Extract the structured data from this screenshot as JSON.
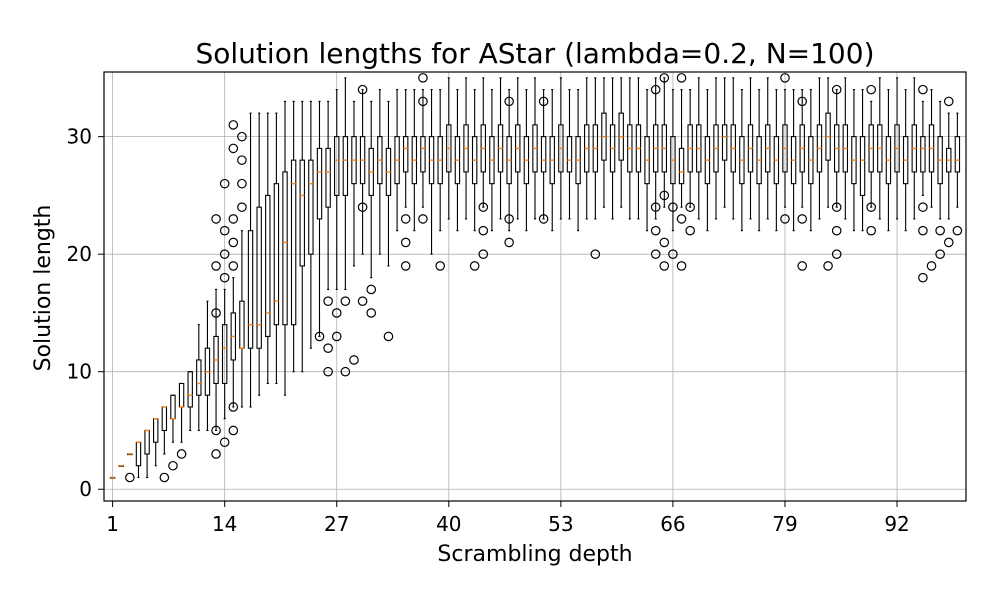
{
  "chart_data": {
    "type": "box",
    "title": "Solution lengths for AStar (lambda=0.2, N=100)",
    "xlabel": "Scrambling depth",
    "ylabel": "Solution length",
    "xlim": [
      0,
      100
    ],
    "ylim": [
      -1,
      35.5
    ],
    "xticks": [
      {
        "value": 1,
        "label": "1"
      },
      {
        "value": 14,
        "label": "14"
      },
      {
        "value": 27,
        "label": "27"
      },
      {
        "value": 40,
        "label": "40"
      },
      {
        "value": 53,
        "label": "53"
      },
      {
        "value": 66,
        "label": "66"
      },
      {
        "value": 79,
        "label": "79"
      },
      {
        "value": 92,
        "label": "92"
      }
    ],
    "yticks": [
      {
        "value": 0,
        "label": "0"
      },
      {
        "value": 10,
        "label": "10"
      },
      {
        "value": 20,
        "label": "20"
      },
      {
        "value": 30,
        "label": "30"
      }
    ],
    "grid": true,
    "colors": {
      "box": "#000000",
      "median": "#ff7f0e",
      "grid": "#b0b0b0"
    },
    "boxes": [
      {
        "x": 1,
        "q1": 1,
        "median": 1,
        "q3": 1,
        "lo": 1,
        "hi": 1,
        "outliers": []
      },
      {
        "x": 2,
        "q1": 2,
        "median": 2,
        "q3": 2,
        "lo": 2,
        "hi": 2,
        "outliers": []
      },
      {
        "x": 3,
        "q1": 3,
        "median": 3,
        "q3": 3,
        "lo": 3,
        "hi": 3,
        "outliers": [
          1
        ]
      },
      {
        "x": 4,
        "q1": 2,
        "median": 4,
        "q3": 4,
        "lo": 1,
        "hi": 4,
        "outliers": []
      },
      {
        "x": 5,
        "q1": 3,
        "median": 5,
        "q3": 5,
        "lo": 1,
        "hi": 5,
        "outliers": []
      },
      {
        "x": 6,
        "q1": 4,
        "median": 6,
        "q3": 6,
        "lo": 2,
        "hi": 6,
        "outliers": []
      },
      {
        "x": 7,
        "q1": 5,
        "median": 7,
        "q3": 7,
        "lo": 3,
        "hi": 7,
        "outliers": [
          1
        ]
      },
      {
        "x": 8,
        "q1": 6,
        "median": 6,
        "q3": 8,
        "lo": 4,
        "hi": 8,
        "outliers": [
          2
        ]
      },
      {
        "x": 9,
        "q1": 7,
        "median": 7,
        "q3": 9,
        "lo": 4,
        "hi": 9,
        "outliers": [
          3
        ]
      },
      {
        "x": 10,
        "q1": 7,
        "median": 8,
        "q3": 10,
        "lo": 5,
        "hi": 10,
        "outliers": []
      },
      {
        "x": 11,
        "q1": 8,
        "median": 9,
        "q3": 11,
        "lo": 5,
        "hi": 14,
        "outliers": []
      },
      {
        "x": 12,
        "q1": 8,
        "median": 10,
        "q3": 12,
        "lo": 5,
        "hi": 16,
        "outliers": []
      },
      {
        "x": 13,
        "q1": 9,
        "median": 11,
        "q3": 13,
        "lo": 5,
        "hi": 17,
        "outliers": [
          3,
          5,
          15,
          19,
          23
        ]
      },
      {
        "x": 14,
        "q1": 9,
        "median": 12,
        "q3": 14,
        "lo": 6,
        "hi": 17,
        "outliers": [
          4,
          18,
          20,
          22,
          26
        ]
      },
      {
        "x": 15,
        "q1": 11,
        "median": 13,
        "q3": 15,
        "lo": 7,
        "hi": 18,
        "outliers": [
          5,
          7,
          19,
          21,
          23,
          29,
          31
        ]
      },
      {
        "x": 16,
        "q1": 12,
        "median": 12,
        "q3": 16,
        "lo": 7,
        "hi": 22,
        "outliers": [
          24,
          26,
          28,
          30
        ]
      },
      {
        "x": 17,
        "q1": 12,
        "median": 14,
        "q3": 22,
        "lo": 7,
        "hi": 32,
        "outliers": []
      },
      {
        "x": 18,
        "q1": 12,
        "median": 14,
        "q3": 24,
        "lo": 8,
        "hi": 32,
        "outliers": []
      },
      {
        "x": 19,
        "q1": 13,
        "median": 15,
        "q3": 25,
        "lo": 9,
        "hi": 32,
        "outliers": []
      },
      {
        "x": 20,
        "q1": 14,
        "median": 16,
        "q3": 26,
        "lo": 9,
        "hi": 32,
        "outliers": []
      },
      {
        "x": 21,
        "q1": 14,
        "median": 21,
        "q3": 27,
        "lo": 8,
        "hi": 33,
        "outliers": []
      },
      {
        "x": 22,
        "q1": 14,
        "median": 26,
        "q3": 28,
        "lo": 10,
        "hi": 33,
        "outliers": []
      },
      {
        "x": 23,
        "q1": 19,
        "median": 25,
        "q3": 28,
        "lo": 10,
        "hi": 33,
        "outliers": []
      },
      {
        "x": 24,
        "q1": 20,
        "median": 26,
        "q3": 28,
        "lo": 12,
        "hi": 33,
        "outliers": []
      },
      {
        "x": 25,
        "q1": 23,
        "median": 27,
        "q3": 29,
        "lo": 13,
        "hi": 33,
        "outliers": [
          13
        ]
      },
      {
        "x": 26,
        "q1": 24,
        "median": 27,
        "q3": 29,
        "lo": 17,
        "hi": 33,
        "outliers": [
          10,
          12,
          16
        ]
      },
      {
        "x": 27,
        "q1": 25,
        "median": 28,
        "q3": 30,
        "lo": 17,
        "hi": 34,
        "outliers": [
          13,
          15
        ]
      },
      {
        "x": 28,
        "q1": 25,
        "median": 28,
        "q3": 30,
        "lo": 17,
        "hi": 35,
        "outliers": [
          10,
          16
        ]
      },
      {
        "x": 29,
        "q1": 26,
        "median": 28,
        "q3": 30,
        "lo": 19,
        "hi": 33,
        "outliers": [
          11
        ]
      },
      {
        "x": 30,
        "q1": 26,
        "median": 28,
        "q3": 30,
        "lo": 20,
        "hi": 34,
        "outliers": [
          16,
          24,
          34
        ]
      },
      {
        "x": 31,
        "q1": 25,
        "median": 27,
        "q3": 29,
        "lo": 18,
        "hi": 33,
        "outliers": [
          15,
          17
        ]
      },
      {
        "x": 32,
        "q1": 26,
        "median": 28,
        "q3": 30,
        "lo": 20,
        "hi": 34,
        "outliers": []
      },
      {
        "x": 33,
        "q1": 25,
        "median": 27,
        "q3": 29,
        "lo": 19,
        "hi": 33,
        "outliers": [
          13
        ]
      },
      {
        "x": 34,
        "q1": 26,
        "median": 28,
        "q3": 30,
        "lo": 22,
        "hi": 34,
        "outliers": []
      },
      {
        "x": 35,
        "q1": 27,
        "median": 29,
        "q3": 30,
        "lo": 24,
        "hi": 34,
        "outliers": [
          19,
          21,
          23
        ]
      },
      {
        "x": 36,
        "q1": 26,
        "median": 28,
        "q3": 30,
        "lo": 22,
        "hi": 34,
        "outliers": []
      },
      {
        "x": 37,
        "q1": 27,
        "median": 29,
        "q3": 30,
        "lo": 24,
        "hi": 34,
        "outliers": [
          23,
          33,
          35
        ]
      },
      {
        "x": 38,
        "q1": 26,
        "median": 28,
        "q3": 30,
        "lo": 20,
        "hi": 34,
        "outliers": []
      },
      {
        "x": 39,
        "q1": 26,
        "median": 28,
        "q3": 30,
        "lo": 22,
        "hi": 34,
        "outliers": [
          19
        ]
      },
      {
        "x": 40,
        "q1": 27,
        "median": 29,
        "q3": 31,
        "lo": 23,
        "hi": 35,
        "outliers": []
      },
      {
        "x": 41,
        "q1": 26,
        "median": 28,
        "q3": 30,
        "lo": 22,
        "hi": 34,
        "outliers": []
      },
      {
        "x": 42,
        "q1": 27,
        "median": 29,
        "q3": 31,
        "lo": 23,
        "hi": 35,
        "outliers": []
      },
      {
        "x": 43,
        "q1": 26,
        "median": 28,
        "q3": 30,
        "lo": 22,
        "hi": 34,
        "outliers": [
          19
        ]
      },
      {
        "x": 44,
        "q1": 27,
        "median": 29,
        "q3": 31,
        "lo": 24,
        "hi": 35,
        "outliers": [
          20,
          22,
          24
        ]
      },
      {
        "x": 45,
        "q1": 26,
        "median": 28,
        "q3": 30,
        "lo": 22,
        "hi": 34,
        "outliers": []
      },
      {
        "x": 46,
        "q1": 27,
        "median": 29,
        "q3": 31,
        "lo": 23,
        "hi": 35,
        "outliers": []
      },
      {
        "x": 47,
        "q1": 26,
        "median": 28,
        "q3": 30,
        "lo": 22,
        "hi": 34,
        "outliers": [
          21,
          23,
          33
        ]
      },
      {
        "x": 48,
        "q1": 27,
        "median": 29,
        "q3": 31,
        "lo": 23,
        "hi": 35,
        "outliers": []
      },
      {
        "x": 49,
        "q1": 26,
        "median": 28,
        "q3": 30,
        "lo": 22,
        "hi": 34,
        "outliers": []
      },
      {
        "x": 50,
        "q1": 27,
        "median": 29,
        "q3": 31,
        "lo": 23,
        "hi": 35,
        "outliers": []
      },
      {
        "x": 51,
        "q1": 27,
        "median": 28,
        "q3": 30,
        "lo": 23,
        "hi": 34,
        "outliers": [
          23,
          33
        ]
      },
      {
        "x": 52,
        "q1": 26,
        "median": 28,
        "q3": 30,
        "lo": 22,
        "hi": 34,
        "outliers": []
      },
      {
        "x": 53,
        "q1": 27,
        "median": 29,
        "q3": 31,
        "lo": 23,
        "hi": 35,
        "outliers": []
      },
      {
        "x": 54,
        "q1": 27,
        "median": 28,
        "q3": 30,
        "lo": 23,
        "hi": 34,
        "outliers": []
      },
      {
        "x": 55,
        "q1": 26,
        "median": 28,
        "q3": 30,
        "lo": 22,
        "hi": 34,
        "outliers": []
      },
      {
        "x": 56,
        "q1": 27,
        "median": 29,
        "q3": 31,
        "lo": 23,
        "hi": 35,
        "outliers": []
      },
      {
        "x": 57,
        "q1": 27,
        "median": 29,
        "q3": 31,
        "lo": 23,
        "hi": 35,
        "outliers": [
          20
        ]
      },
      {
        "x": 58,
        "q1": 28,
        "median": 30,
        "q3": 32,
        "lo": 24,
        "hi": 35,
        "outliers": []
      },
      {
        "x": 59,
        "q1": 27,
        "median": 29,
        "q3": 31,
        "lo": 23,
        "hi": 35,
        "outliers": []
      },
      {
        "x": 60,
        "q1": 28,
        "median": 30,
        "q3": 32,
        "lo": 24,
        "hi": 35,
        "outliers": []
      },
      {
        "x": 61,
        "q1": 27,
        "median": 29,
        "q3": 31,
        "lo": 23,
        "hi": 35,
        "outliers": []
      },
      {
        "x": 62,
        "q1": 27,
        "median": 29,
        "q3": 31,
        "lo": 23,
        "hi": 35,
        "outliers": []
      },
      {
        "x": 63,
        "q1": 26,
        "median": 28,
        "q3": 30,
        "lo": 22,
        "hi": 34,
        "outliers": []
      },
      {
        "x": 64,
        "q1": 27,
        "median": 29,
        "q3": 31,
        "lo": 23,
        "hi": 35,
        "outliers": [
          20,
          22,
          24,
          34
        ]
      },
      {
        "x": 65,
        "q1": 27,
        "median": 29,
        "q3": 31,
        "lo": 24,
        "hi": 35,
        "outliers": [
          19,
          21,
          25,
          35
        ]
      },
      {
        "x": 66,
        "q1": 26,
        "median": 28,
        "q3": 30,
        "lo": 22,
        "hi": 34,
        "outliers": [
          20,
          24
        ]
      },
      {
        "x": 67,
        "q1": 26,
        "median": 27,
        "q3": 29,
        "lo": 24,
        "hi": 34,
        "outliers": [
          19,
          23,
          35
        ]
      },
      {
        "x": 68,
        "q1": 27,
        "median": 29,
        "q3": 31,
        "lo": 24,
        "hi": 34,
        "outliers": [
          22,
          24
        ]
      },
      {
        "x": 69,
        "q1": 27,
        "median": 29,
        "q3": 31,
        "lo": 23,
        "hi": 35,
        "outliers": []
      },
      {
        "x": 70,
        "q1": 26,
        "median": 28,
        "q3": 30,
        "lo": 22,
        "hi": 34,
        "outliers": []
      },
      {
        "x": 71,
        "q1": 27,
        "median": 29,
        "q3": 31,
        "lo": 23,
        "hi": 35,
        "outliers": []
      },
      {
        "x": 72,
        "q1": 28,
        "median": 30,
        "q3": 31,
        "lo": 24,
        "hi": 35,
        "outliers": []
      },
      {
        "x": 73,
        "q1": 27,
        "median": 29,
        "q3": 31,
        "lo": 23,
        "hi": 35,
        "outliers": []
      },
      {
        "x": 74,
        "q1": 26,
        "median": 28,
        "q3": 30,
        "lo": 22,
        "hi": 34,
        "outliers": []
      },
      {
        "x": 75,
        "q1": 27,
        "median": 29,
        "q3": 31,
        "lo": 23,
        "hi": 35,
        "outliers": []
      },
      {
        "x": 76,
        "q1": 26,
        "median": 28,
        "q3": 30,
        "lo": 22,
        "hi": 34,
        "outliers": []
      },
      {
        "x": 77,
        "q1": 27,
        "median": 29,
        "q3": 31,
        "lo": 23,
        "hi": 35,
        "outliers": []
      },
      {
        "x": 78,
        "q1": 26,
        "median": 28,
        "q3": 30,
        "lo": 22,
        "hi": 34,
        "outliers": []
      },
      {
        "x": 79,
        "q1": 27,
        "median": 29,
        "q3": 31,
        "lo": 24,
        "hi": 34,
        "outliers": [
          23,
          35
        ]
      },
      {
        "x": 80,
        "q1": 26,
        "median": 28,
        "q3": 30,
        "lo": 22,
        "hi": 34,
        "outliers": []
      },
      {
        "x": 81,
        "q1": 27,
        "median": 29,
        "q3": 31,
        "lo": 24,
        "hi": 34,
        "outliers": [
          19,
          23,
          33
        ]
      },
      {
        "x": 82,
        "q1": 26,
        "median": 28,
        "q3": 30,
        "lo": 22,
        "hi": 34,
        "outliers": []
      },
      {
        "x": 83,
        "q1": 27,
        "median": 29,
        "q3": 31,
        "lo": 23,
        "hi": 35,
        "outliers": []
      },
      {
        "x": 84,
        "q1": 28,
        "median": 30,
        "q3": 32,
        "lo": 24,
        "hi": 35,
        "outliers": [
          19
        ]
      },
      {
        "x": 85,
        "q1": 27,
        "median": 29,
        "q3": 31,
        "lo": 24,
        "hi": 34,
        "outliers": [
          20,
          22,
          24,
          34
        ]
      },
      {
        "x": 86,
        "q1": 27,
        "median": 29,
        "q3": 31,
        "lo": 23,
        "hi": 35,
        "outliers": []
      },
      {
        "x": 87,
        "q1": 26,
        "median": 28,
        "q3": 30,
        "lo": 22,
        "hi": 34,
        "outliers": []
      },
      {
        "x": 88,
        "q1": 25,
        "median": 28,
        "q3": 30,
        "lo": 22,
        "hi": 34,
        "outliers": []
      },
      {
        "x": 89,
        "q1": 27,
        "median": 29,
        "q3": 31,
        "lo": 24,
        "hi": 33,
        "outliers": [
          22,
          24,
          34
        ]
      },
      {
        "x": 90,
        "q1": 27,
        "median": 29,
        "q3": 31,
        "lo": 23,
        "hi": 35,
        "outliers": []
      },
      {
        "x": 91,
        "q1": 26,
        "median": 28,
        "q3": 30,
        "lo": 22,
        "hi": 34,
        "outliers": []
      },
      {
        "x": 92,
        "q1": 27,
        "median": 29,
        "q3": 31,
        "lo": 23,
        "hi": 35,
        "outliers": []
      },
      {
        "x": 93,
        "q1": 26,
        "median": 28,
        "q3": 30,
        "lo": 22,
        "hi": 34,
        "outliers": []
      },
      {
        "x": 94,
        "q1": 27,
        "median": 29,
        "q3": 31,
        "lo": 23,
        "hi": 35,
        "outliers": []
      },
      {
        "x": 95,
        "q1": 27,
        "median": 29,
        "q3": 30,
        "lo": 25,
        "hi": 33,
        "outliers": [
          18,
          22,
          24,
          34
        ]
      },
      {
        "x": 96,
        "q1": 27,
        "median": 29,
        "q3": 31,
        "lo": 24,
        "hi": 34,
        "outliers": [
          19
        ]
      },
      {
        "x": 97,
        "q1": 26,
        "median": 28,
        "q3": 30,
        "lo": 23,
        "hi": 33,
        "outliers": [
          20,
          22
        ]
      },
      {
        "x": 98,
        "q1": 27,
        "median": 28,
        "q3": 29,
        "lo": 23,
        "hi": 32,
        "outliers": [
          21,
          33
        ]
      },
      {
        "x": 99,
        "q1": 27,
        "median": 28,
        "q3": 30,
        "lo": 24,
        "hi": 32,
        "outliers": [
          22
        ]
      }
    ]
  }
}
